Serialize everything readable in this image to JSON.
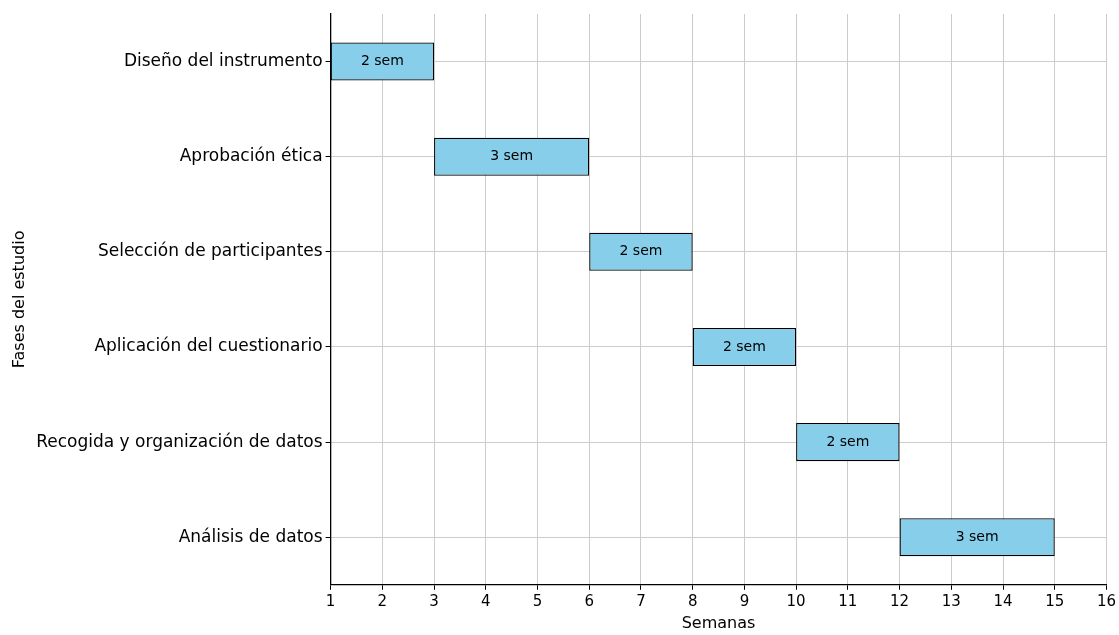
{
  "chart_data": {
    "type": "bar",
    "orientation": "horizontal",
    "xlabel": "Semanas",
    "ylabel": "Fases del estudio",
    "categories": [
      "Diseño del instrumento",
      "Aprobación ética",
      "Selección de participantes",
      "Aplicación del cuestionario",
      "Recogida y organización de datos",
      "Análisis de datos"
    ],
    "base": [
      1,
      3,
      6,
      8,
      10,
      12
    ],
    "values": [
      2,
      3,
      2,
      2,
      2,
      3
    ],
    "value_labels": [
      "2 sem",
      "3 sem",
      "2 sem",
      "2 sem",
      "2 sem",
      "3 sem"
    ],
    "color": "#87ceeb",
    "xlim": [
      1,
      16
    ],
    "xticks": [
      1,
      2,
      3,
      4,
      5,
      6,
      7,
      8,
      9,
      10,
      11,
      12,
      13,
      14,
      15,
      16
    ],
    "grid": true
  }
}
